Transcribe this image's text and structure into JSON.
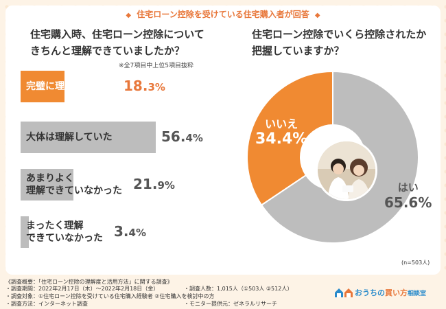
{
  "header": "住宅ローン控除を受けている住宅購入者が回答",
  "header_diamond": "◆",
  "question_left": [
    "住宅購入時、住宅ローン控除について",
    "きちんと理解できていましたか？"
  ],
  "question_right": [
    "住宅ローン控除でいくら控除されたか",
    "把握していますか？"
  ],
  "note": "※全7項目中上位5項目抜粋",
  "n_label": "(n=503人)",
  "colors": {
    "accent": "#f08a32",
    "gray": "#bdbdbd",
    "header": "#e8773a"
  },
  "chart_data": [
    {
      "type": "bar",
      "orientation": "horizontal",
      "categories": [
        "完璧に理解していた",
        "大体は理解していた",
        "あまりよく理解できていなかった",
        "まったく理解できていなかった"
      ],
      "category_lines": [
        [
          "完璧に理解していた"
        ],
        [
          "大体は理解していた"
        ],
        [
          "あまりよく",
          "理解できていなかった"
        ],
        [
          "まったく理解",
          "できていなかった"
        ]
      ],
      "values": [
        18.3,
        56.4,
        21.9,
        3.4
      ],
      "value_labels": [
        [
          "18.",
          "3%"
        ],
        [
          "56.",
          "4%"
        ],
        [
          "21.",
          "9%"
        ],
        [
          "3.",
          "4%"
        ]
      ],
      "highlight_index": 0,
      "xlim": [
        0,
        70
      ]
    },
    {
      "type": "pie",
      "categories": [
        "いいえ",
        "はい"
      ],
      "values": [
        34.4,
        65.6
      ],
      "value_labels": [
        "34.4%",
        "65.6%"
      ],
      "colors": [
        "#f08a32",
        "#bdbdbd"
      ]
    }
  ],
  "footer": {
    "title": "《調査概要：「住宅ローン控除の理解度と活用方法」に関する調査》",
    "left": [
      "・調査期間：2022年2月17日（木）〜2022年2月18日（金）",
      "・調査対象：①住宅ローン控除を受けている住宅購入経験者 ②住宅購入を検討中の方",
      "・調査方法：インターネット調査"
    ],
    "right": [
      "・調査人数：1,015人（①503人 ②512人）",
      "",
      "・モニター提供元：ゼネラルリサーチ"
    ],
    "logo": [
      "おうちの",
      "買い方",
      "相談室"
    ]
  }
}
